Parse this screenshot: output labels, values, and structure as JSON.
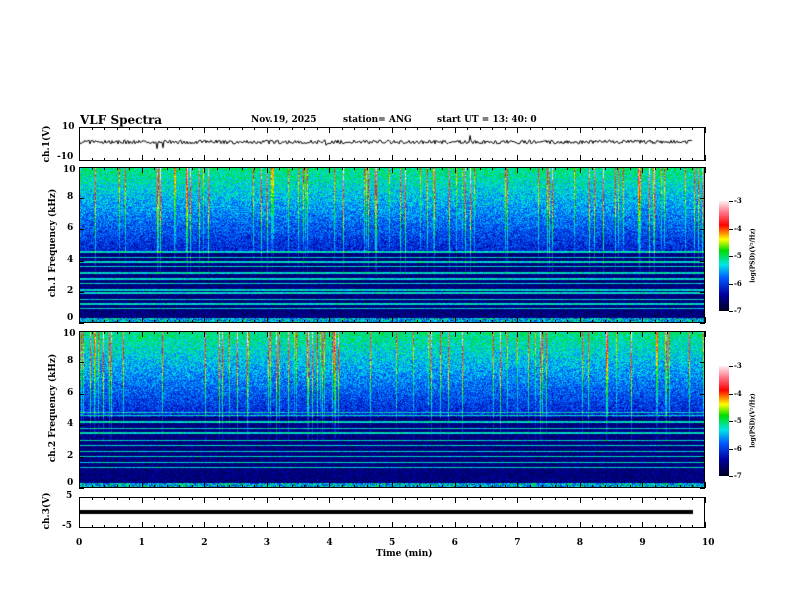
{
  "header": {
    "title": "VLF Spectra",
    "date": "Nov.19, 2025",
    "station": "station= ANG",
    "start": "start  UT =   13: 40: 0"
  },
  "colors": {
    "background": "#ffffff",
    "axis": "#000000"
  },
  "chart_data": [
    {
      "type": "line",
      "name": "ch1-waveform",
      "ylabel": "ch.1(V)",
      "ylim": [
        -10,
        10
      ],
      "yticks": [
        "10",
        "-10"
      ],
      "xlim": [
        0,
        10
      ],
      "baseline": 0
    },
    {
      "type": "heatmap",
      "name": "ch1-spectrogram",
      "ylabel": "ch.1 Frequency (kHz)",
      "ylim": [
        0,
        10
      ],
      "yticks": [
        "0",
        "2",
        "4",
        "6",
        "8",
        "10"
      ],
      "xlim": [
        0,
        10
      ],
      "colorbar": {
        "label": "log(PSD)(V²/Hz)",
        "range": [
          -7,
          -3
        ],
        "ticks": [
          "-3",
          "-4",
          "-5",
          "-6",
          "-7"
        ]
      }
    },
    {
      "type": "heatmap",
      "name": "ch2-spectrogram",
      "ylabel": "ch.2 Frequency (kHz)",
      "ylim": [
        0,
        10
      ],
      "yticks": [
        "0",
        "2",
        "4",
        "6",
        "8",
        "10"
      ],
      "xlim": [
        0,
        10
      ],
      "colorbar": {
        "label": "log(PSD)(V²/Hz)",
        "range": [
          -7,
          -3
        ],
        "ticks": [
          "-3",
          "-4",
          "-5",
          "-6",
          "-7"
        ]
      }
    },
    {
      "type": "line",
      "name": "ch3-waveform",
      "ylabel": "ch.3(V)",
      "ylim": [
        -5,
        5
      ],
      "yticks": [
        "5",
        "-5"
      ],
      "xlim": [
        0,
        10
      ],
      "baseline": 0
    }
  ],
  "xaxis": {
    "label": "Time  (min)",
    "ticks": [
      "0",
      "1",
      "2",
      "3",
      "4",
      "5",
      "6",
      "7",
      "8",
      "9",
      "10"
    ]
  }
}
